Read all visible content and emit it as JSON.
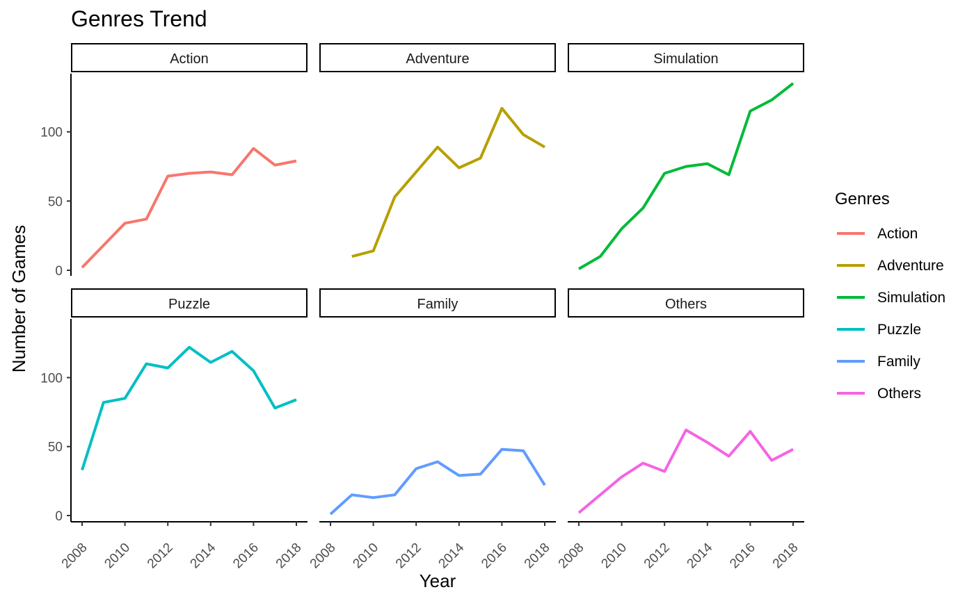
{
  "chart_data": {
    "type": "line",
    "title": "Genres Trend",
    "xlabel": "Year",
    "ylabel": "Number of Games",
    "legend": {
      "title": "Genres",
      "placement": "right"
    },
    "xlim": [
      2008,
      2018
    ],
    "ylim": [
      0,
      135
    ],
    "x_ticks": [
      2008,
      2010,
      2012,
      2014,
      2016,
      2018
    ],
    "y_ticks": [
      0,
      50,
      100
    ],
    "grid": false,
    "x": [
      2008,
      2009,
      2010,
      2011,
      2012,
      2013,
      2014,
      2015,
      2016,
      2017,
      2018
    ],
    "series": [
      {
        "name": "Action",
        "color": "#F8766D",
        "values": [
          2,
          18,
          34,
          37,
          68,
          70,
          71,
          69,
          88,
          76,
          79
        ]
      },
      {
        "name": "Adventure",
        "color": "#B79F00",
        "values": [
          null,
          10,
          14,
          53,
          71,
          89,
          74,
          81,
          117,
          98,
          89
        ]
      },
      {
        "name": "Simulation",
        "color": "#00BA38",
        "values": [
          1,
          10,
          30,
          45,
          70,
          75,
          77,
          69,
          115,
          123,
          135
        ]
      },
      {
        "name": "Puzzle",
        "color": "#00BFC4",
        "values": [
          33,
          82,
          85,
          110,
          107,
          122,
          111,
          119,
          105,
          78,
          84
        ]
      },
      {
        "name": "Family",
        "color": "#619CFF",
        "values": [
          1,
          15,
          13,
          15,
          34,
          39,
          29,
          30,
          48,
          47,
          22
        ]
      },
      {
        "name": "Others",
        "color": "#F564E3",
        "values": [
          2,
          15,
          28,
          38,
          32,
          62,
          53,
          43,
          61,
          40,
          48
        ]
      }
    ]
  }
}
